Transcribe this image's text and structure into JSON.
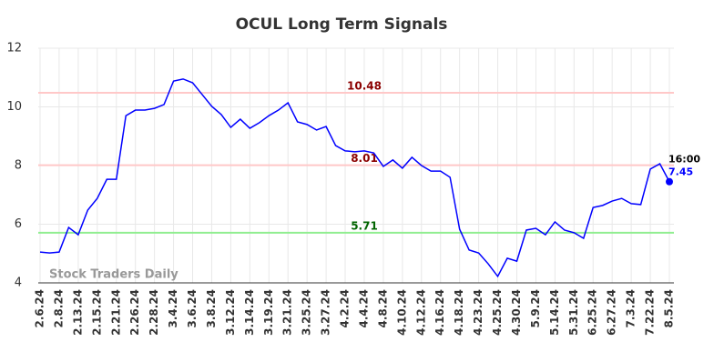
{
  "chart_data": {
    "type": "line",
    "title": "OCUL Long Term Signals",
    "categories": [
      "2.6.24",
      null,
      "2.8.24",
      null,
      "2.13.24",
      null,
      "2.15.24",
      null,
      "2.21.24",
      null,
      "2.26.24",
      null,
      "2.28.24",
      null,
      "3.4.24",
      null,
      "3.6.24",
      null,
      "3.8.24",
      null,
      "3.12.24",
      null,
      "3.14.24",
      null,
      "3.19.24",
      null,
      "3.21.24",
      null,
      "3.25.24",
      null,
      "3.27.24",
      null,
      "4.2.24",
      null,
      "4.4.24",
      null,
      "4.8.24",
      null,
      "4.10.24",
      null,
      "4.12.24",
      null,
      "4.16.24",
      null,
      "4.18.24",
      null,
      "4.23.24",
      null,
      "4.25.24",
      null,
      "4.30.24",
      null,
      "5.9.24",
      null,
      "5.14.24",
      null,
      "5.31.24",
      null,
      "6.25.24",
      null,
      "6.27.24",
      null,
      "7.3.24",
      null,
      "7.22.24",
      null,
      "8.5.24"
    ],
    "values": [
      5.05,
      5.02,
      5.05,
      5.89,
      5.64,
      6.48,
      6.88,
      7.53,
      7.53,
      9.7,
      9.89,
      9.89,
      9.95,
      10.08,
      10.88,
      10.95,
      10.82,
      10.42,
      10.02,
      9.74,
      9.3,
      9.58,
      9.27,
      9.46,
      9.7,
      9.89,
      10.14,
      9.49,
      9.4,
      9.21,
      9.33,
      8.68,
      8.5,
      8.47,
      8.5,
      8.43,
      7.97,
      8.19,
      7.91,
      8.28,
      8.0,
      7.81,
      7.81,
      7.6,
      5.83,
      5.12,
      5.02,
      4.65,
      4.22,
      4.84,
      4.74,
      5.8,
      5.86,
      5.64,
      6.08,
      5.8,
      5.71,
      5.52,
      6.57,
      6.64,
      6.79,
      6.88,
      6.7,
      6.67,
      7.88,
      8.06,
      7.45
    ],
    "color": "#0000ff",
    "ylim": [
      4,
      12
    ],
    "yticks": [
      4,
      6,
      8,
      10,
      12
    ],
    "grid": true,
    "hlines": [
      {
        "value": 10.48,
        "color": "#ffc8c8",
        "label_color": "#8b0000"
      },
      {
        "value": 8.01,
        "color": "#ffc8c8",
        "label_color": "#8b0000"
      },
      {
        "value": 5.71,
        "color": "#90ee90",
        "label_color": "#006400"
      }
    ],
    "last_time": "16:00",
    "watermark": "Stock Traders Daily"
  }
}
